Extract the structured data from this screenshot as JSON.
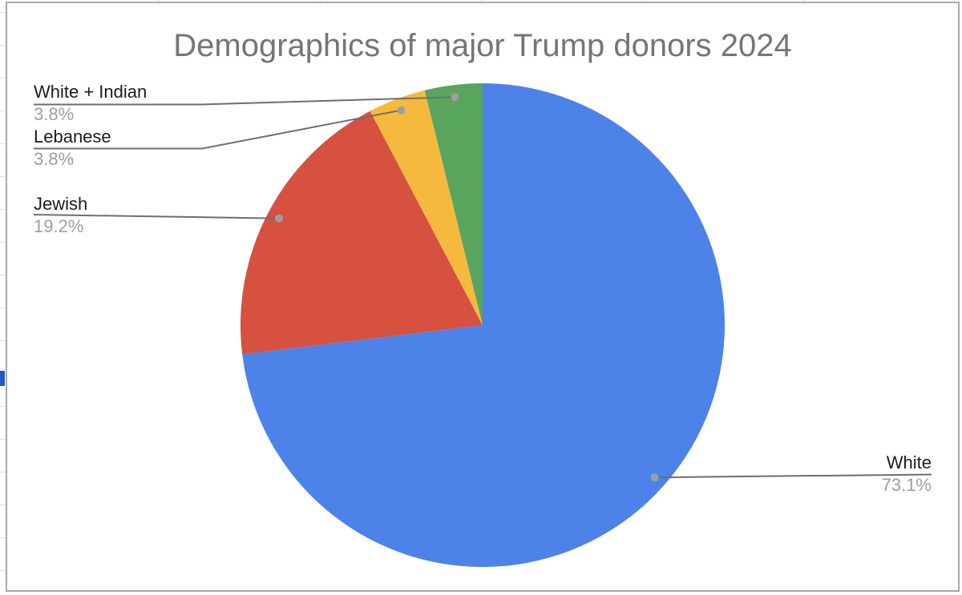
{
  "chart_data": {
    "type": "pie",
    "title": "Demographics of major Trump donors 2024",
    "start": "12-oclock",
    "direction": "clockwise",
    "legend_position": "callout-labels",
    "grid": false,
    "slices": [
      {
        "label": "White",
        "pct": "73.1%",
        "value": 19,
        "color": "#4d82e8"
      },
      {
        "label": "Jewish",
        "pct": "19.2%",
        "value": 5,
        "color": "#d6513f"
      },
      {
        "label": "Lebanese",
        "pct": "3.8%",
        "value": 1,
        "color": "#f5b93e"
      },
      {
        "label": "White + Indian",
        "pct": "3.8%",
        "value": 1,
        "color": "#5aa55e"
      }
    ],
    "title_color": "#757575",
    "label_color": "#1c1c1c",
    "pct_color": "#9e9e9e",
    "leader_line_color": "#6e6e6e",
    "dot_color": "#9e9e9e"
  },
  "frame": {
    "border_color": "#a8a8a8",
    "background": "#ffffff",
    "gridline_color": "#e2e2e2",
    "selection_fragment_color": "#2456c4"
  }
}
